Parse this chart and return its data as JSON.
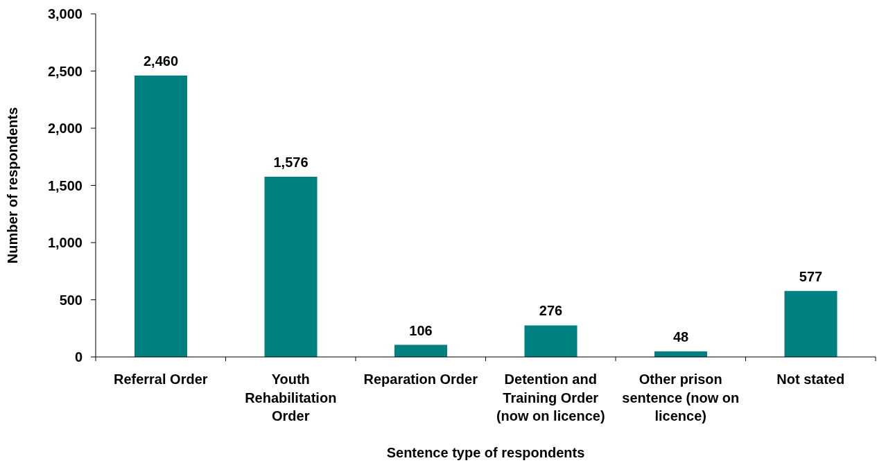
{
  "chart_data": {
    "type": "bar",
    "xlabel": "Sentence type of respondents",
    "ylabel": "Number of respondents",
    "categories": [
      "Referral Order",
      "Youth Rehabilitation Order",
      "Reparation Order",
      "Detention and Training Order (now on licence)",
      "Other prison sentence (now on licence)",
      "Not stated"
    ],
    "values": [
      2460,
      1576,
      106,
      276,
      48,
      577
    ],
    "color": "#008080",
    "value_labels": [
      "2,460",
      "1,576",
      "106",
      "276",
      "48",
      "577"
    ],
    "ylim": [
      0,
      3000
    ],
    "yticks": [
      0,
      {
        "value": 500,
        "label": "500"
      },
      {
        "value": 1000,
        "label": "1,000"
      },
      {
        "value": 1500,
        "label": "1,500"
      },
      {
        "value": 2000,
        "label": "2,000"
      },
      {
        "value": 2500,
        "label": "2,500"
      },
      {
        "value": 3000,
        "label": "3,000"
      }
    ]
  }
}
